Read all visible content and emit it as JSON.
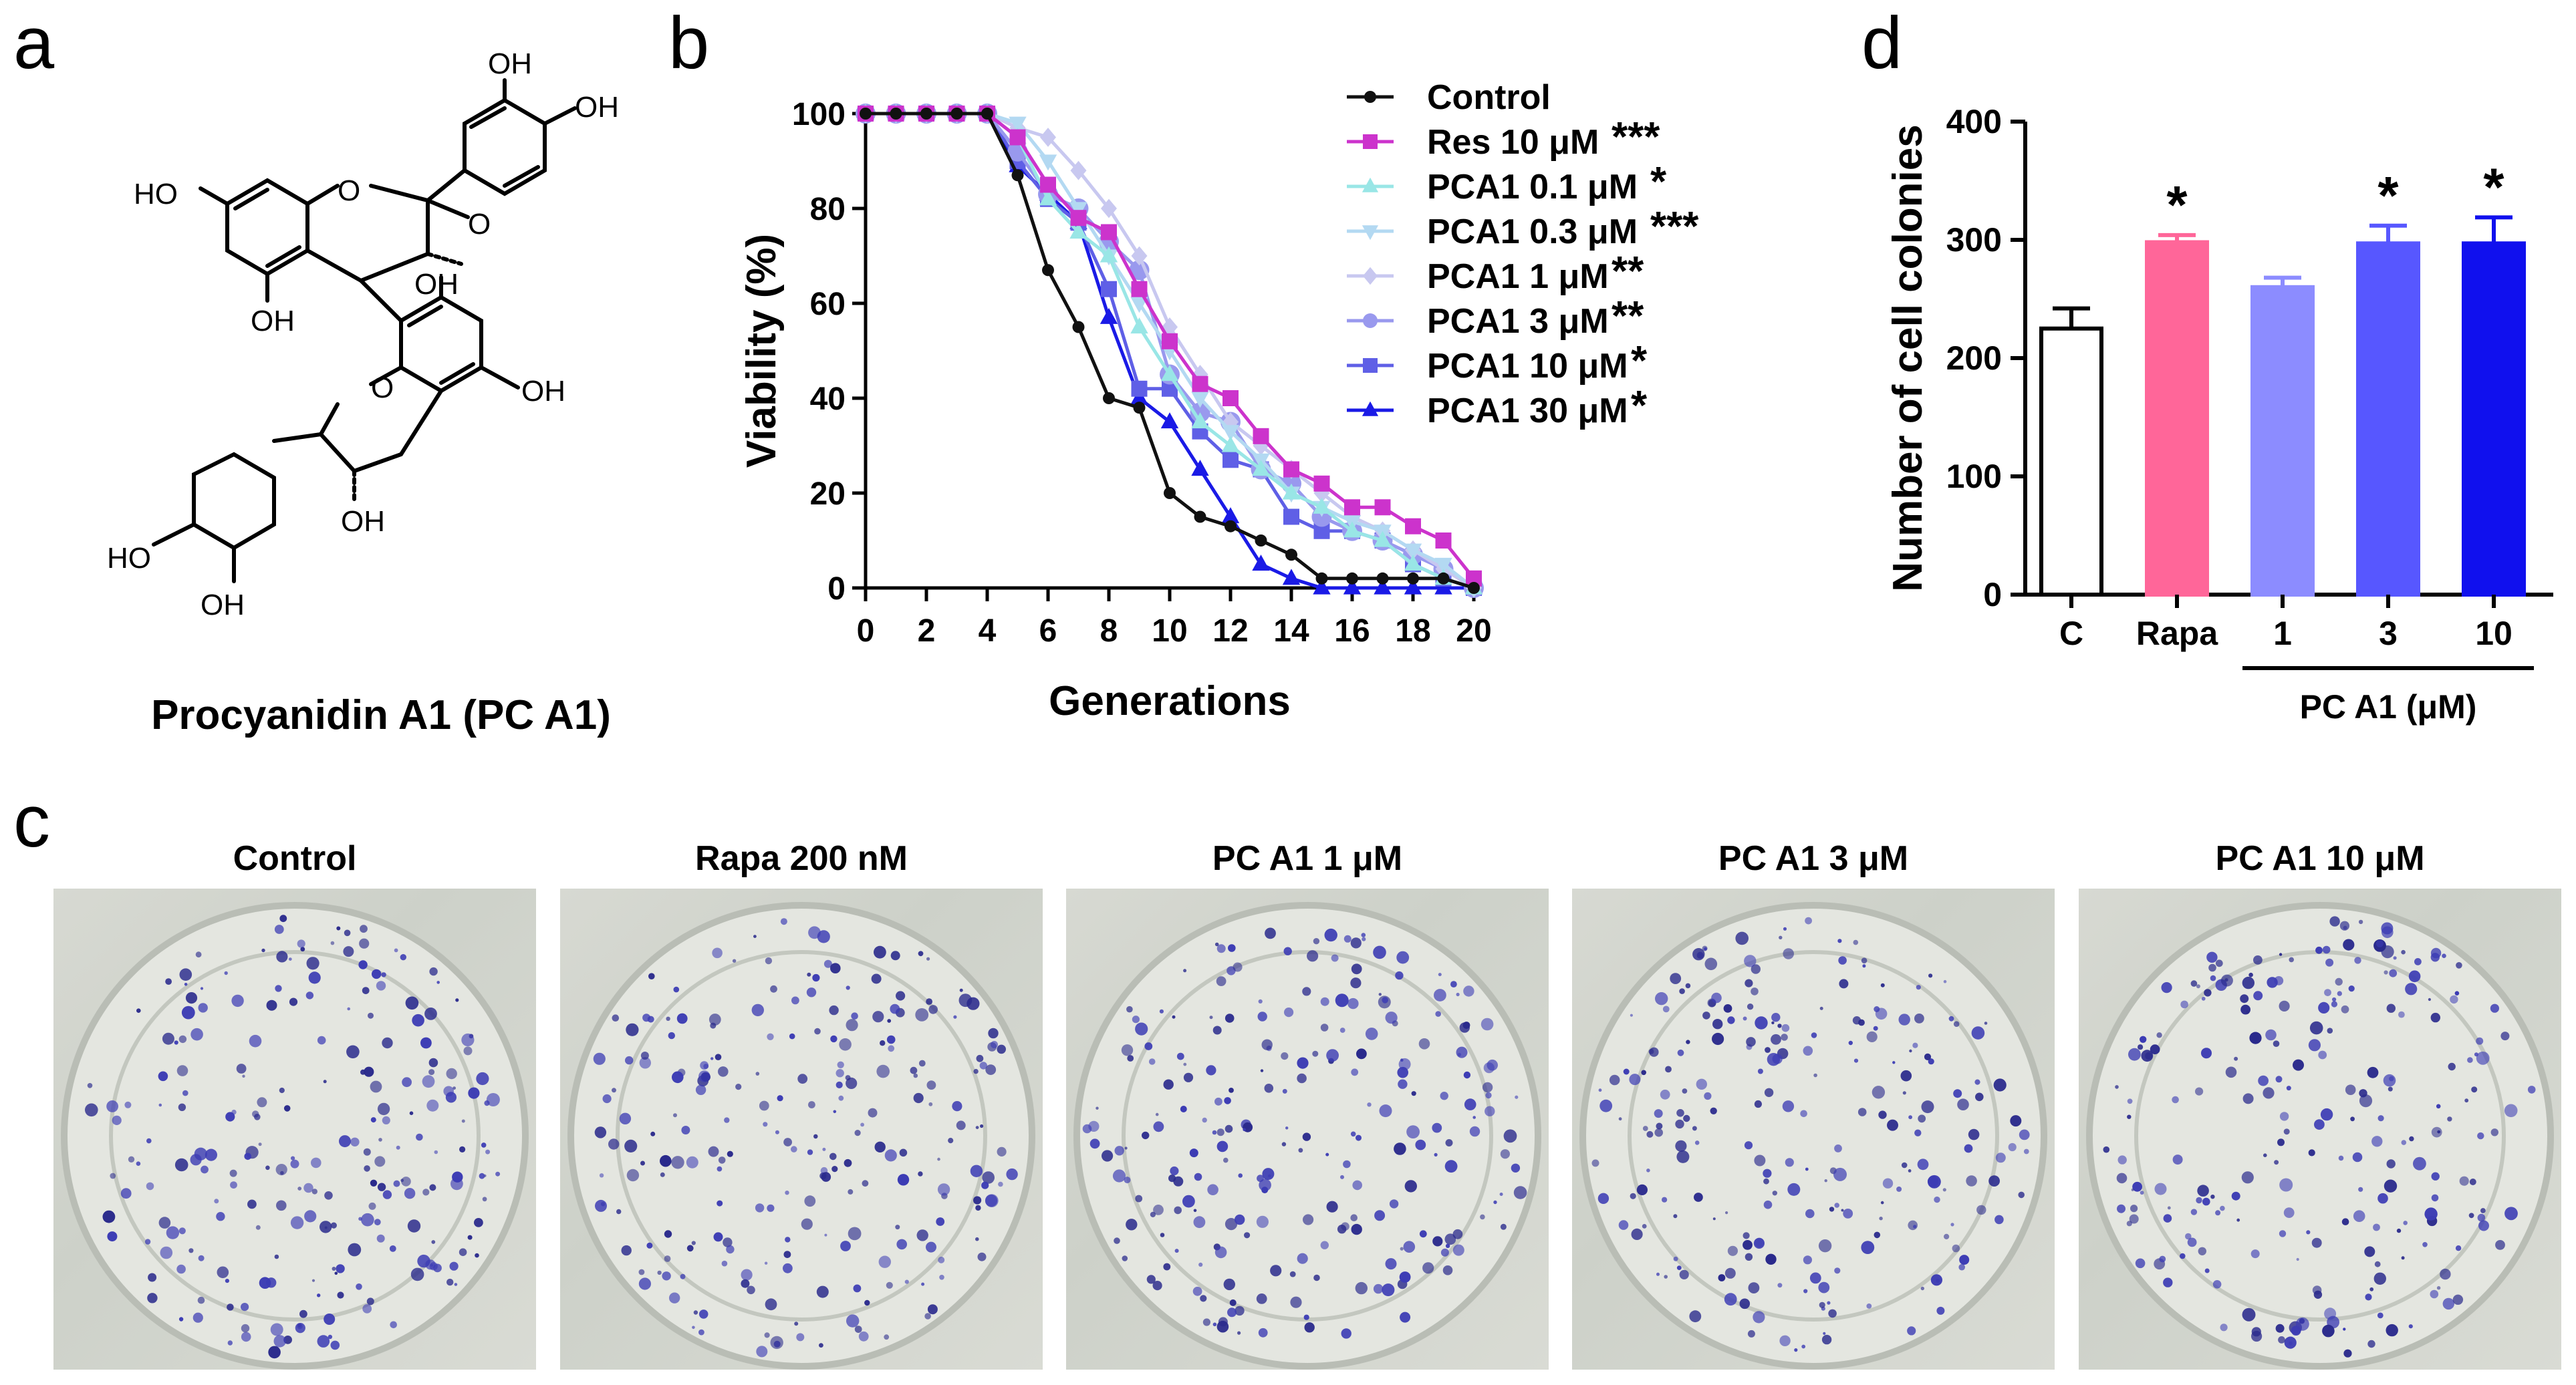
{
  "panels": {
    "a": {
      "letter": "a",
      "compound_name": "Procyanidin A1 (PC A1)",
      "structure_labels": [
        "OH",
        "OH",
        "HO",
        "O",
        "O",
        "OH",
        "OH",
        "O",
        "OH",
        "HO",
        "OH",
        "OH"
      ]
    },
    "b": {
      "letter": "b"
    },
    "c": {
      "letter": "c",
      "plates": [
        {
          "title": "Control"
        },
        {
          "title": "Rapa 200 nM"
        },
        {
          "title": "PC A1 1 μM"
        },
        {
          "title": "PC A1 3 μM"
        },
        {
          "title": "PC A1 10 μM"
        }
      ]
    },
    "d": {
      "letter": "d"
    }
  },
  "colors": {
    "control": "#111111",
    "res": "#cc33cc",
    "pca01": "#99e6e6",
    "pca03": "#b3d9f2",
    "pca1": "#c8c8f0",
    "pca3": "#9999ee",
    "pca10": "#5f5fe6",
    "pca30": "#1a1ae6",
    "bar_c": "#ffffff",
    "bar_rapa": "#ff6699",
    "bar_1": "#8c8cff",
    "bar_3": "#5757ff",
    "bar_10": "#1010ee"
  },
  "chart_data": [
    {
      "id": "b",
      "type": "line",
      "title": "",
      "xlabel": "Generations",
      "ylabel": "Viability (%)",
      "xlim": [
        0,
        20
      ],
      "ylim": [
        0,
        100
      ],
      "xticks": [
        0,
        2,
        4,
        6,
        8,
        10,
        12,
        14,
        16,
        18,
        20
      ],
      "yticks": [
        0,
        20,
        40,
        60,
        80,
        100
      ],
      "legend_position": "top-right",
      "series": [
        {
          "name": "Control",
          "sig": "",
          "marker": "circle",
          "color": "#111111",
          "x": [
            0,
            1,
            2,
            3,
            4,
            5,
            6,
            7,
            8,
            9,
            10,
            11,
            12,
            13,
            14,
            15,
            16,
            17,
            18,
            19,
            20
          ],
          "y": [
            100,
            100,
            100,
            100,
            100,
            87,
            67,
            55,
            40,
            38,
            20,
            15,
            13,
            10,
            7,
            2,
            2,
            2,
            2,
            2,
            0
          ]
        },
        {
          "name": "Res 10 μM",
          "sig": "***",
          "marker": "square",
          "color": "#cc33cc",
          "x": [
            0,
            1,
            2,
            3,
            4,
            5,
            6,
            7,
            8,
            9,
            10,
            11,
            12,
            13,
            14,
            15,
            16,
            17,
            18,
            19,
            20
          ],
          "y": [
            100,
            100,
            100,
            100,
            100,
            95,
            85,
            78,
            75,
            63,
            52,
            43,
            40,
            32,
            25,
            22,
            17,
            17,
            13,
            10,
            2
          ]
        },
        {
          "name": "PCA1 0.1 μM",
          "sig": "*",
          "marker": "triangle-up",
          "color": "#99e6e6",
          "x": [
            0,
            1,
            2,
            3,
            4,
            5,
            6,
            7,
            8,
            9,
            10,
            11,
            12,
            13,
            14,
            15,
            16,
            17,
            18,
            19,
            20
          ],
          "y": [
            100,
            100,
            100,
            100,
            100,
            95,
            82,
            75,
            70,
            55,
            45,
            35,
            30,
            25,
            20,
            17,
            12,
            10,
            5,
            2,
            0
          ]
        },
        {
          "name": "PCA1 0.3 μM",
          "sig": "***",
          "marker": "triangle-down",
          "color": "#b3d9f2",
          "x": [
            0,
            1,
            2,
            3,
            4,
            5,
            6,
            7,
            8,
            9,
            10,
            11,
            12,
            13,
            14,
            15,
            16,
            17,
            18,
            19,
            20
          ],
          "y": [
            100,
            100,
            100,
            100,
            100,
            98,
            90,
            80,
            70,
            60,
            50,
            40,
            33,
            27,
            20,
            17,
            14,
            12,
            8,
            5,
            0
          ]
        },
        {
          "name": "PCA1 1 μM",
          "sig": "**",
          "marker": "diamond",
          "color": "#c8c8f0",
          "x": [
            0,
            1,
            2,
            3,
            4,
            5,
            6,
            7,
            8,
            9,
            10,
            11,
            12,
            13,
            14,
            15,
            16,
            17,
            18,
            19,
            20
          ],
          "y": [
            100,
            100,
            100,
            100,
            100,
            97,
            95,
            88,
            80,
            70,
            55,
            45,
            35,
            30,
            25,
            20,
            15,
            12,
            8,
            4,
            0
          ]
        },
        {
          "name": "PCA1 3 μM",
          "sig": "**",
          "marker": "circle",
          "color": "#9999ee",
          "x": [
            0,
            1,
            2,
            3,
            4,
            5,
            6,
            7,
            8,
            9,
            10,
            11,
            12,
            13,
            14,
            15,
            16,
            17,
            18,
            19,
            20
          ],
          "y": [
            100,
            100,
            100,
            100,
            100,
            92,
            83,
            80,
            73,
            67,
            45,
            37,
            35,
            25,
            22,
            15,
            12,
            10,
            7,
            4,
            0
          ]
        },
        {
          "name": "PCA1 10 μM",
          "sig": "*",
          "marker": "square",
          "color": "#5f5fe6",
          "x": [
            0,
            1,
            2,
            3,
            4,
            5,
            6,
            7,
            8,
            9,
            10,
            11,
            12,
            13,
            14,
            15,
            16,
            17,
            18,
            19,
            20
          ],
          "y": [
            100,
            100,
            100,
            100,
            100,
            90,
            82,
            77,
            63,
            42,
            42,
            33,
            27,
            25,
            15,
            12,
            12,
            10,
            5,
            2,
            0
          ]
        },
        {
          "name": "PCA1 30 μM",
          "sig": "*",
          "marker": "triangle-up",
          "color": "#1a1ae6",
          "x": [
            0,
            1,
            2,
            3,
            4,
            5,
            6,
            7,
            8,
            9,
            10,
            11,
            12,
            13,
            14,
            15,
            16,
            17,
            18,
            19,
            20
          ],
          "y": [
            100,
            100,
            100,
            100,
            100,
            89,
            83,
            77,
            57,
            40,
            35,
            25,
            15,
            5,
            2,
            0,
            0,
            0,
            0,
            0,
            0
          ]
        }
      ]
    },
    {
      "id": "d",
      "type": "bar",
      "title": "",
      "xlabel": "",
      "ylabel": "Number of cell colonies",
      "ylim": [
        0,
        400
      ],
      "yticks": [
        0,
        100,
        200,
        300,
        400
      ],
      "categories": [
        "C",
        "Rapa",
        "1",
        "3",
        "10"
      ],
      "values": [
        225,
        298,
        260,
        297,
        297
      ],
      "errors": [
        17,
        6,
        8,
        15,
        22
      ],
      "significance": [
        "",
        "*",
        "",
        "*",
        "*"
      ],
      "group_label": "PC A1 (μM)",
      "group_categories": [
        "1",
        "3",
        "10"
      ]
    }
  ]
}
